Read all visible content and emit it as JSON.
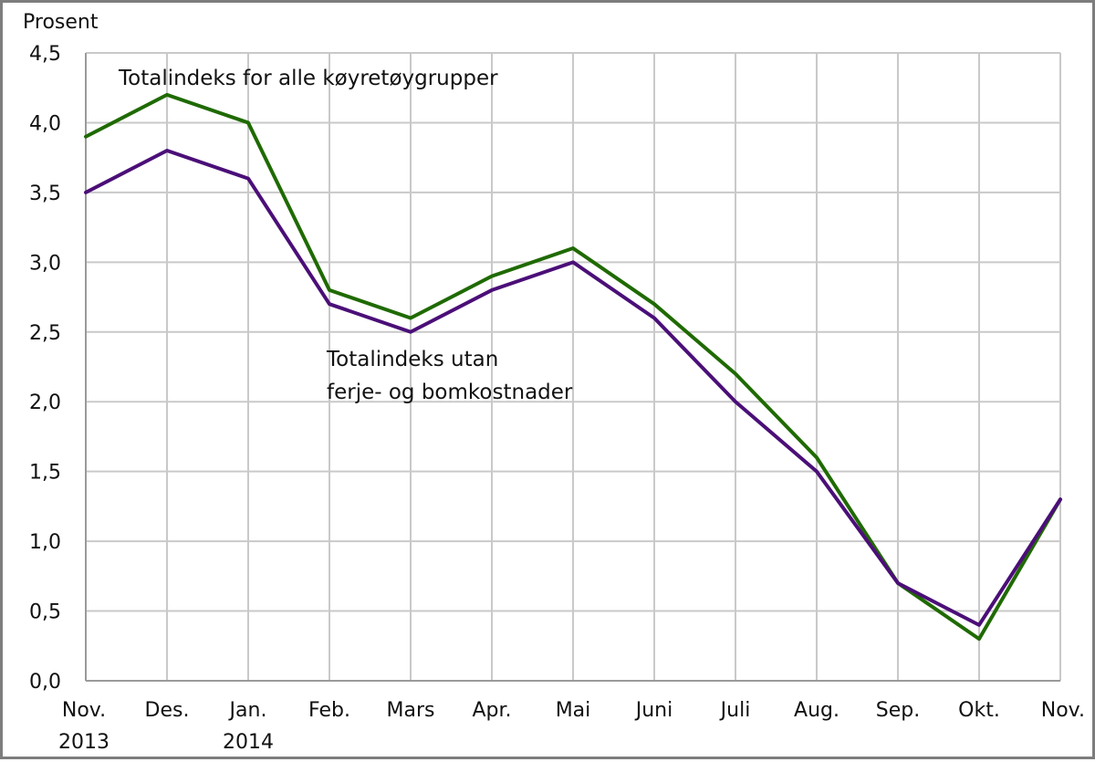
{
  "chart_data": {
    "type": "line",
    "ylabel": "Prosent",
    "ylim": [
      0,
      4.5
    ],
    "yticks": [
      0,
      0.5,
      1.0,
      1.5,
      2.0,
      2.5,
      3.0,
      3.5,
      4.0,
      4.5
    ],
    "ytick_labels": [
      "0,0",
      "0,5",
      "1,0",
      "1,5",
      "2,0",
      "2,5",
      "3,0",
      "3,5",
      "4,0",
      "4,5"
    ],
    "categories": [
      "Nov. 2013",
      "Des.",
      "Jan. 2014",
      "Feb.",
      "Mars",
      "Apr.",
      "Mai",
      "Juni",
      "Juli",
      "Aug.",
      "Sep.",
      "Okt.",
      "Nov."
    ],
    "x_tick_labels": [
      [
        "Nov.",
        "2013"
      ],
      [
        "Des."
      ],
      [
        "Jan.",
        "2014"
      ],
      [
        "Feb."
      ],
      [
        "Mars"
      ],
      [
        "Apr."
      ],
      [
        "Mai"
      ],
      [
        "Juni"
      ],
      [
        "Juli"
      ],
      [
        "Aug."
      ],
      [
        "Sep."
      ],
      [
        "Okt."
      ],
      [
        "Nov."
      ]
    ],
    "grid": true,
    "series": [
      {
        "name": "Totalindeks for alle køyretøygrupper",
        "label_lines": [
          "Totalindeks for alle køyretøygrupper"
        ],
        "color": "#1f6a00",
        "values": [
          3.9,
          4.2,
          4.0,
          2.8,
          2.6,
          2.9,
          3.1,
          2.7,
          2.2,
          1.6,
          0.7,
          0.3,
          1.3
        ]
      },
      {
        "name": "Totalindeks utan ferje- og bomkostnader",
        "label_lines": [
          "Totalindeks utan",
          "ferje- og bomkostnader"
        ],
        "color": "#4b0f78",
        "values": [
          3.5,
          3.8,
          3.6,
          2.7,
          2.5,
          2.8,
          3.0,
          2.6,
          2.0,
          1.5,
          0.7,
          0.4,
          1.3
        ]
      }
    ]
  }
}
